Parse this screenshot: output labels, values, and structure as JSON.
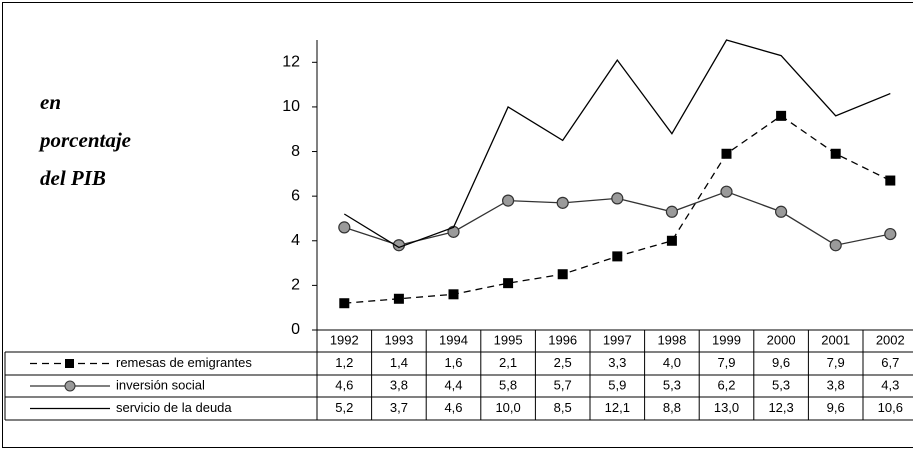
{
  "chart_data": {
    "type": "line",
    "y_label": [
      "en",
      "porcentaje",
      "del PIB"
    ],
    "categories": [
      "1992",
      "1993",
      "1994",
      "1995",
      "1996",
      "1997",
      "1998",
      "1999",
      "2000",
      "2001",
      "2002"
    ],
    "ylim": [
      0,
      13
    ],
    "yticks": [
      0,
      2,
      4,
      6,
      8,
      10,
      12
    ],
    "series": [
      {
        "name": "remesas de emigrantes",
        "color": "#000000",
        "style": "dashed",
        "marker": "square",
        "values": [
          1.2,
          1.4,
          1.6,
          2.1,
          2.5,
          3.3,
          4.0,
          7.9,
          9.6,
          7.9,
          6.7
        ],
        "value_labels": [
          "1,2",
          "1,4",
          "1,6",
          "2,1",
          "2,5",
          "3,3",
          "4,0",
          "7,9",
          "9,6",
          "7,9",
          "6,7"
        ]
      },
      {
        "name": "inversión social",
        "color": "#333333",
        "style": "solid",
        "marker": "circle",
        "values": [
          4.6,
          3.8,
          4.4,
          5.8,
          5.7,
          5.9,
          5.3,
          6.2,
          5.3,
          3.8,
          4.3
        ],
        "value_labels": [
          "4,6",
          "3,8",
          "4,4",
          "5,8",
          "5,7",
          "5,9",
          "5,3",
          "6,2",
          "5,3",
          "3,8",
          "4,3"
        ]
      },
      {
        "name": "servicio de la deuda",
        "color": "#000000",
        "style": "solid",
        "marker": "none",
        "values": [
          5.2,
          3.7,
          4.6,
          10.0,
          8.5,
          12.1,
          8.8,
          13.0,
          12.3,
          9.6,
          10.6
        ],
        "value_labels": [
          "5,2",
          "3,7",
          "4,6",
          "10,0",
          "8,5",
          "12,1",
          "8,8",
          "13,0",
          "12,3",
          "9,6",
          "10,6"
        ]
      }
    ]
  }
}
